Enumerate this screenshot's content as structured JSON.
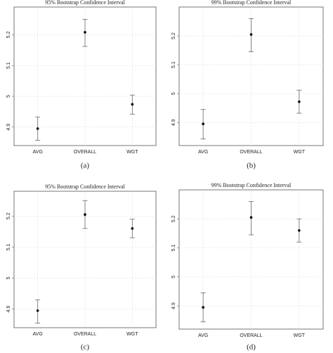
{
  "chart_data": [
    {
      "type": "errorbar",
      "title": "95% Bootstrap Confidence Interval",
      "caption": "(a)",
      "categories": [
        "AVG",
        "OVERALL",
        "WGT"
      ],
      "values": [
        4.895,
        5.208,
        4.974
      ],
      "lower": [
        4.857,
        5.162,
        4.942
      ],
      "upper": [
        4.933,
        5.25,
        5.004
      ],
      "ylim": [
        4.84,
        5.29
      ],
      "yticks": [
        4.9,
        5.0,
        5.1,
        5.2
      ],
      "grid": true,
      "color": "#000000"
    },
    {
      "type": "errorbar",
      "title": "99% Bootstrap Confidence Interval",
      "caption": "(b)",
      "categories": [
        "AVG",
        "OVERALL",
        "WGT"
      ],
      "values": [
        4.895,
        5.205,
        4.972
      ],
      "lower": [
        4.843,
        5.145,
        4.932
      ],
      "upper": [
        4.945,
        5.26,
        5.012
      ],
      "ylim": [
        4.82,
        5.3
      ],
      "yticks": [
        4.9,
        5.0,
        5.1,
        5.2
      ],
      "grid": true,
      "color": "#000000"
    },
    {
      "type": "errorbar",
      "title": "95% Bootstrap Confidence Interval",
      "caption": "(c)",
      "categories": [
        "AVG",
        "OVERALL",
        "WGT"
      ],
      "values": [
        4.895,
        5.205,
        5.16
      ],
      "lower": [
        4.855,
        5.16,
        5.13
      ],
      "upper": [
        4.93,
        5.25,
        5.19
      ],
      "ylim": [
        4.84,
        5.28
      ],
      "yticks": [
        4.9,
        5.0,
        5.1,
        5.2
      ],
      "grid": true,
      "color": "#000000"
    },
    {
      "type": "errorbar",
      "title": "99% Bootstrap Confidence Interval",
      "caption": "(d)",
      "categories": [
        "AVG",
        "OVERALL",
        "WGT"
      ],
      "values": [
        4.895,
        5.205,
        5.16
      ],
      "lower": [
        4.845,
        5.145,
        5.12
      ],
      "upper": [
        4.945,
        5.26,
        5.2
      ],
      "ylim": [
        4.82,
        5.3
      ],
      "yticks": [
        4.9,
        5.0,
        5.1,
        5.2
      ],
      "grid": true,
      "color": "#000000"
    }
  ]
}
